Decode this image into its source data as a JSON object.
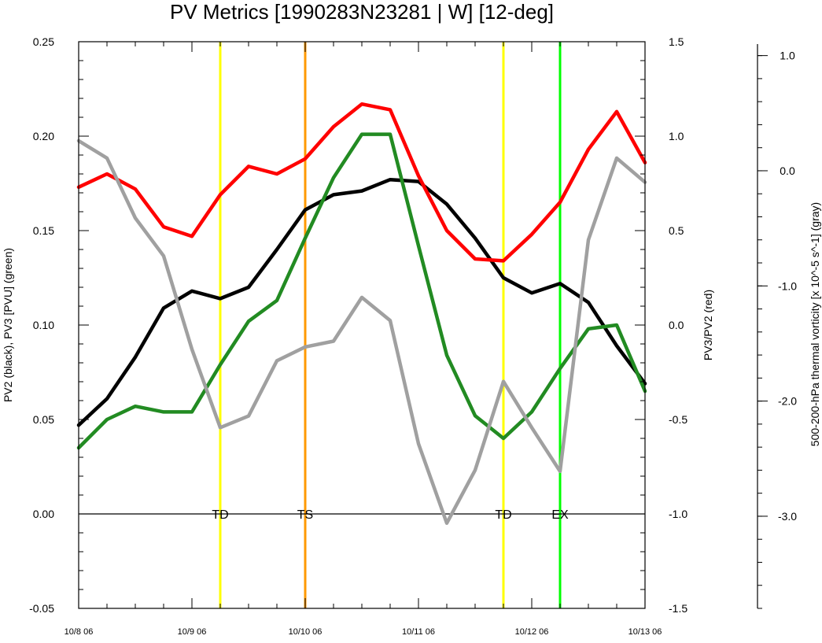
{
  "chart_data": {
    "type": "line",
    "title": "PV Metrics [1990283N23281 | W] [12-deg]",
    "x_tick_labels": [
      "10/8 06",
      "10/9 06",
      "10/10 06",
      "10/11 06",
      "10/12 06",
      "10/13 06"
    ],
    "left_axis": {
      "label": "PV2 (black), PV3 [PVU] (green)",
      "ylim": [
        -0.05,
        0.25
      ],
      "tick_labels": [
        "-0.05",
        "0.00",
        "0.05",
        "0.10",
        "0.15",
        "0.20",
        "0.25"
      ]
    },
    "right_axis": {
      "label": "PV3/PV2 (red)",
      "ylim": [
        -1.5,
        1.5
      ],
      "tick_labels": [
        "-1.5",
        "-1.0",
        "-0.5",
        "0.0",
        "0.5",
        "1.0",
        "1.5"
      ]
    },
    "far_right_axis": {
      "label": "500-200-hPa thermal vorticity [x 10^-5 s^-1] (gray)",
      "ylim": [
        -3.8,
        1.1
      ],
      "tick_labels": [
        "-3.0",
        "-2.0",
        "-1.0",
        "0.0",
        "1.0"
      ]
    },
    "x_range_days": [
      0,
      5
    ],
    "x": [
      0,
      0.25,
      0.5,
      0.75,
      1.0,
      1.25,
      1.5,
      1.75,
      2.0,
      2.25,
      2.5,
      2.75,
      3.0,
      3.25,
      3.5,
      3.75,
      4.0,
      4.25,
      4.5,
      4.75,
      5.0
    ],
    "series": [
      {
        "axis": "left",
        "color": "#000000",
        "values": [
          0.047,
          0.061,
          0.083,
          0.109,
          0.118,
          0.114,
          0.12,
          0.14,
          0.161,
          0.169,
          0.171,
          0.177,
          0.176,
          0.164,
          0.146,
          0.125,
          0.117,
          0.122,
          0.112,
          0.089,
          0.069
        ]
      },
      {
        "axis": "left",
        "color": "#228b22",
        "values": [
          0.035,
          0.05,
          0.057,
          0.054,
          0.054,
          0.079,
          0.102,
          0.113,
          0.146,
          0.178,
          0.201,
          0.201,
          0.142,
          0.084,
          0.052,
          0.04,
          0.054,
          0.077,
          0.098,
          0.1,
          0.065
        ]
      },
      {
        "axis": "right",
        "color": "#ff0000",
        "values": [
          0.73,
          0.8,
          0.72,
          0.52,
          0.47,
          0.69,
          0.84,
          0.8,
          0.88,
          1.05,
          1.17,
          1.14,
          0.79,
          0.5,
          0.35,
          0.34,
          0.48,
          0.65,
          0.93,
          1.13,
          0.86
        ]
      },
      {
        "axis": "far_right",
        "color": "#a0a0a0",
        "values": [
          0.26,
          0.11,
          -0.41,
          -0.74,
          -1.55,
          -2.23,
          -2.13,
          -1.65,
          -1.53,
          -1.48,
          -1.1,
          -1.3,
          -2.37,
          -3.06,
          -2.6,
          -1.83,
          -2.23,
          -2.61,
          -0.6,
          0.11,
          -0.1
        ]
      }
    ],
    "stage_markers": [
      {
        "x": 1.25,
        "label": "TD",
        "color": "#ffff00"
      },
      {
        "x": 2.0,
        "label": "TS",
        "color": "#ff9900"
      },
      {
        "x": 3.75,
        "label": "TD",
        "color": "#ffff00"
      },
      {
        "x": 4.25,
        "label": "EX",
        "color": "#00ff00"
      }
    ],
    "zero_line": 0.0,
    "grid": false,
    "legend": "none"
  }
}
